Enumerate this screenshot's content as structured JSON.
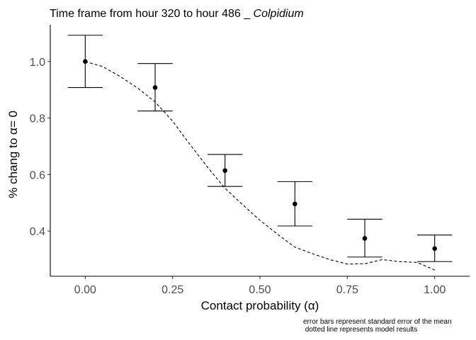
{
  "chart_data": {
    "type": "scatter",
    "title": {
      "prefix": "Time frame from hour 320  to hour  486 _ ",
      "italic": "Colpidium"
    },
    "xlabel": "Contact probability (α)",
    "ylabel": "% chang to α= 0",
    "xlim": [
      -0.1,
      1.1
    ],
    "ylim": [
      0.24,
      1.13
    ],
    "x_ticks": [
      {
        "value": 0.0,
        "label": "0.00"
      },
      {
        "value": 0.25,
        "label": "0.25"
      },
      {
        "value": 0.5,
        "label": "0.50"
      },
      {
        "value": 0.75,
        "label": "0.75"
      },
      {
        "value": 1.0,
        "label": "1.00"
      }
    ],
    "y_ticks": [
      {
        "value": 0.4,
        "label": "0.4"
      },
      {
        "value": 0.6,
        "label": "0.6"
      },
      {
        "value": 0.8,
        "label": "0.8"
      },
      {
        "value": 1.0,
        "label": "1.0"
      }
    ],
    "grid": false,
    "series": [
      {
        "kind": "points-with-error-bars",
        "x": [
          0.0,
          0.2,
          0.4,
          0.6,
          0.8,
          1.0
        ],
        "y": [
          1.0,
          0.908,
          0.614,
          0.496,
          0.374,
          0.338
        ],
        "ymin": [
          0.908,
          0.825,
          0.558,
          0.418,
          0.308,
          0.292
        ],
        "ymax": [
          1.093,
          0.993,
          0.671,
          0.575,
          0.442,
          0.386
        ],
        "color": "#000000"
      },
      {
        "kind": "dashed-line",
        "x": [
          0.0,
          0.05,
          0.1,
          0.15,
          0.2,
          0.25,
          0.3,
          0.35,
          0.4,
          0.45,
          0.5,
          0.55,
          0.6,
          0.65,
          0.7,
          0.75,
          0.8,
          0.85,
          0.9,
          0.95,
          1.0
        ],
        "y": [
          1.0,
          0.982,
          0.947,
          0.906,
          0.857,
          0.789,
          0.706,
          0.626,
          0.551,
          0.494,
          0.438,
          0.389,
          0.343,
          0.32,
          0.299,
          0.283,
          0.284,
          0.299,
          0.292,
          0.289,
          0.262
        ],
        "color": "#000000"
      }
    ],
    "notes": [
      "error bars represent standard error of the mean",
      " dotted line represents model results"
    ]
  }
}
